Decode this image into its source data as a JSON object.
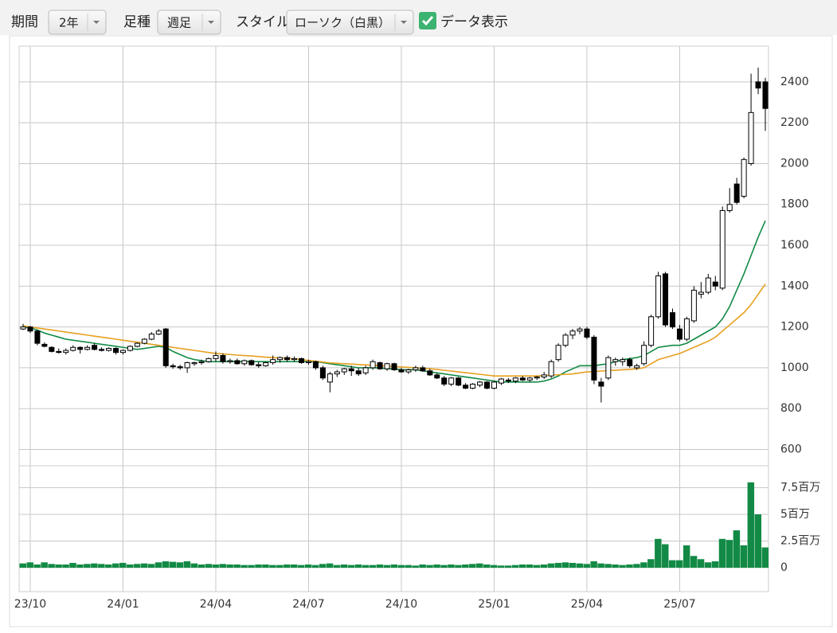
{
  "controls": {
    "period_label": "期間",
    "period": "2年",
    "bar_type_label": "足種",
    "bar_type": "週足",
    "style_label": "スタイル",
    "style": "ローソク（白黒）",
    "show_data": "データ表示"
  },
  "chart_data": {
    "type": "candlestick",
    "categories": [
      null,
      "23/10",
      null,
      null,
      null,
      null,
      null,
      null,
      null,
      null,
      null,
      null,
      null,
      null,
      "24/01",
      null,
      null,
      null,
      null,
      null,
      null,
      null,
      null,
      null,
      null,
      null,
      null,
      "24/04",
      null,
      null,
      null,
      null,
      null,
      null,
      null,
      null,
      null,
      null,
      null,
      null,
      "24/07",
      null,
      null,
      null,
      null,
      null,
      null,
      null,
      null,
      null,
      null,
      null,
      null,
      "24/10",
      null,
      null,
      null,
      null,
      null,
      null,
      null,
      null,
      null,
      null,
      null,
      null,
      "25/01",
      null,
      null,
      null,
      null,
      null,
      null,
      null,
      null,
      null,
      null,
      null,
      null,
      "25/04",
      null,
      null,
      null,
      null,
      null,
      null,
      null,
      null,
      null,
      null,
      null,
      null,
      "25/07",
      null,
      null,
      null,
      null,
      null,
      null,
      null,
      null,
      null,
      null,
      null,
      null
    ],
    "open": [
      1190,
      1200,
      1180,
      1115,
      1100,
      1080,
      1075,
      1085,
      1100,
      1090,
      1110,
      1090,
      1085,
      1095,
      1075,
      1085,
      1105,
      1120,
      1140,
      1165,
      1190,
      1010,
      1005,
      1000,
      1020,
      1025,
      1030,
      1045,
      1060,
      1030,
      1035,
      1020,
      1035,
      1015,
      1010,
      1025,
      1040,
      1050,
      1040,
      1045,
      1025,
      1030,
      1000,
      930,
      970,
      980,
      995,
      985,
      975,
      1000,
      1025,
      995,
      1020,
      990,
      980,
      990,
      1000,
      985,
      965,
      950,
      920,
      950,
      915,
      900,
      915,
      930,
      900,
      925,
      940,
      935,
      950,
      940,
      950,
      955,
      960,
      1040,
      1110,
      1160,
      1180,
      1190,
      1150,
      930,
      950,
      1030,
      1030,
      1040,
      1000,
      1020,
      1110,
      1250,
      1460,
      1270,
      1190,
      1140,
      1230,
      1360,
      1370,
      1420,
      1390,
      1770,
      1900,
      1840,
      2000,
      2400,
      2400
    ],
    "high": [
      1215,
      1205,
      1185,
      1125,
      1105,
      1095,
      1095,
      1110,
      1105,
      1110,
      1120,
      1100,
      1100,
      1100,
      1090,
      1110,
      1125,
      1145,
      1175,
      1190,
      1195,
      1020,
      1015,
      1030,
      1030,
      1040,
      1050,
      1080,
      1070,
      1045,
      1045,
      1040,
      1040,
      1030,
      1030,
      1060,
      1055,
      1060,
      1055,
      1050,
      1040,
      1035,
      1010,
      980,
      990,
      1000,
      1010,
      1000,
      1010,
      1040,
      1030,
      1025,
      1025,
      1000,
      995,
      1010,
      1010,
      995,
      975,
      960,
      955,
      955,
      925,
      925,
      935,
      935,
      935,
      950,
      950,
      955,
      960,
      955,
      960,
      980,
      1040,
      1120,
      1170,
      1190,
      1200,
      1200,
      1160,
      950,
      1060,
      1050,
      1050,
      1050,
      1020,
      1130,
      1260,
      1470,
      1470,
      1290,
      1210,
      1250,
      1400,
      1420,
      1460,
      1450,
      1790,
      1880,
      1930,
      2030,
      2440,
      2470,
      2420
    ],
    "low": [
      1185,
      1170,
      1110,
      1100,
      1075,
      1070,
      1065,
      1080,
      1070,
      1085,
      1085,
      1080,
      1080,
      1065,
      1065,
      1080,
      1100,
      1115,
      1135,
      1160,
      1000,
      995,
      990,
      975,
      1010,
      1015,
      1025,
      1030,
      1020,
      1020,
      1015,
      1010,
      1010,
      1000,
      1005,
      1015,
      1025,
      1030,
      1030,
      1020,
      1015,
      990,
      940,
      880,
      955,
      965,
      960,
      960,
      965,
      990,
      990,
      985,
      985,
      975,
      970,
      980,
      980,
      960,
      945,
      910,
      910,
      910,
      895,
      895,
      905,
      895,
      895,
      915,
      925,
      925,
      935,
      930,
      940,
      945,
      950,
      1030,
      1100,
      1140,
      1165,
      1140,
      920,
      830,
      940,
      1010,
      1010,
      1000,
      990,
      1010,
      1100,
      1240,
      1200,
      1190,
      1130,
      1130,
      1220,
      1340,
      1360,
      1380,
      1380,
      1760,
      1800,
      1830,
      1990,
      2340,
      2160
    ],
    "close": [
      1200,
      1180,
      1120,
      1105,
      1080,
      1075,
      1085,
      1100,
      1090,
      1100,
      1090,
      1085,
      1095,
      1075,
      1085,
      1105,
      1120,
      1140,
      1165,
      1180,
      1010,
      1005,
      1000,
      1025,
      1025,
      1030,
      1045,
      1060,
      1030,
      1035,
      1020,
      1035,
      1015,
      1010,
      1025,
      1040,
      1050,
      1040,
      1045,
      1025,
      1030,
      1000,
      950,
      970,
      980,
      995,
      985,
      970,
      1000,
      1030,
      995,
      1020,
      990,
      980,
      990,
      1000,
      985,
      965,
      950,
      920,
      950,
      915,
      900,
      920,
      930,
      900,
      930,
      945,
      935,
      950,
      940,
      950,
      955,
      965,
      1030,
      1110,
      1160,
      1180,
      1190,
      1150,
      940,
      910,
      1050,
      1040,
      1040,
      1010,
      1010,
      1110,
      1250,
      1450,
      1210,
      1200,
      1140,
      1240,
      1380,
      1370,
      1440,
      1400,
      1770,
      1800,
      1810,
      2020,
      2250,
      2370,
      2270
    ],
    "up_color": "#ffffff",
    "down_color": "#000000",
    "ylim": [
      520,
      2575
    ],
    "yticks": [
      600,
      800,
      1000,
      1200,
      1400,
      1600,
      1800,
      2000,
      2200,
      2400
    ],
    "grid": true,
    "lines": [
      {
        "color": "#128a45",
        "values": [
          1200,
          1195,
          1185,
          1170,
          1160,
          1150,
          1140,
          1135,
          1130,
          1125,
          1120,
          1115,
          1110,
          1105,
          1100,
          1095,
          1090,
          1095,
          1100,
          1105,
          1100,
          1080,
          1065,
          1050,
          1040,
          1035,
          1030,
          1030,
          1030,
          1030,
          1030,
          1030,
          1030,
          1030,
          1030,
          1030,
          1030,
          1030,
          1030,
          1030,
          1030,
          1030,
          1025,
          1020,
          1015,
          1010,
          1005,
          1000,
          1000,
          1000,
          1000,
          995,
          995,
          990,
          990,
          990,
          985,
          980,
          975,
          970,
          965,
          960,
          955,
          950,
          945,
          940,
          935,
          930,
          930,
          930,
          930,
          930,
          930,
          935,
          945,
          960,
          980,
          995,
          1010,
          1010,
          1010,
          1015,
          1020,
          1030,
          1040,
          1045,
          1050,
          1060,
          1080,
          1100,
          1105,
          1110,
          1110,
          1120,
          1140,
          1160,
          1180,
          1200,
          1240,
          1300,
          1380,
          1460,
          1550,
          1640,
          1720
        ]
      },
      {
        "color": "#e6a020",
        "values": [
          1205,
          1200,
          1195,
          1190,
          1185,
          1180,
          1175,
          1170,
          1165,
          1160,
          1155,
          1150,
          1145,
          1140,
          1135,
          1130,
          1125,
          1120,
          1115,
          1110,
          1105,
          1100,
          1095,
          1090,
          1085,
          1080,
          1075,
          1070,
          1068,
          1065,
          1062,
          1060,
          1058,
          1055,
          1052,
          1050,
          1048,
          1046,
          1044,
          1040,
          1036,
          1032,
          1028,
          1024,
          1022,
          1020,
          1018,
          1016,
          1014,
          1012,
          1010,
          1008,
          1006,
          1004,
          1002,
          1000,
          998,
          995,
          992,
          988,
          984,
          980,
          976,
          972,
          968,
          964,
          960,
          960,
          960,
          960,
          960,
          960,
          960,
          962,
          964,
          966,
          968,
          970,
          975,
          980,
          982,
          984,
          986,
          988,
          990,
          992,
          995,
          1000,
          1020,
          1040,
          1050,
          1060,
          1070,
          1085,
          1100,
          1115,
          1130,
          1150,
          1180,
          1210,
          1240,
          1270,
          1310,
          1360,
          1410
        ]
      }
    ],
    "volume": {
      "type": "bar",
      "color": "#128a45",
      "values": [
        400000,
        500000,
        300000,
        500000,
        350000,
        300000,
        300000,
        450000,
        300000,
        350000,
        400000,
        350000,
        300000,
        400000,
        450000,
        300000,
        350000,
        400000,
        350000,
        500000,
        600000,
        550000,
        500000,
        600000,
        400000,
        300000,
        350000,
        300000,
        350000,
        300000,
        300000,
        250000,
        250000,
        300000,
        300000,
        250000,
        250000,
        300000,
        300000,
        250000,
        300000,
        250000,
        350000,
        400000,
        250000,
        300000,
        250000,
        300000,
        250000,
        250000,
        300000,
        250000,
        300000,
        250000,
        250000,
        200000,
        300000,
        250000,
        300000,
        250000,
        300000,
        250000,
        300000,
        350000,
        400000,
        300000,
        250000,
        200000,
        200000,
        250000,
        300000,
        300000,
        250000,
        300000,
        400000,
        450000,
        500000,
        450000,
        400000,
        350000,
        600000,
        400000,
        350000,
        300000,
        250000,
        300000,
        350000,
        500000,
        800000,
        2700000,
        2200000,
        700000,
        700000,
        2100000,
        1100000,
        800000,
        500000,
        600000,
        2700000,
        2600000,
        3500000,
        2100000,
        8000000,
        5000000,
        1900000
      ],
      "ylim": [
        -2240000,
        9550000
      ],
      "yticks": [
        0,
        {
          "value": 2500000,
          "label": "2.5百万"
        },
        {
          "value": 5000000,
          "label": "5百万"
        },
        {
          "value": 7500000,
          "label": "7.5百万"
        }
      ]
    }
  }
}
